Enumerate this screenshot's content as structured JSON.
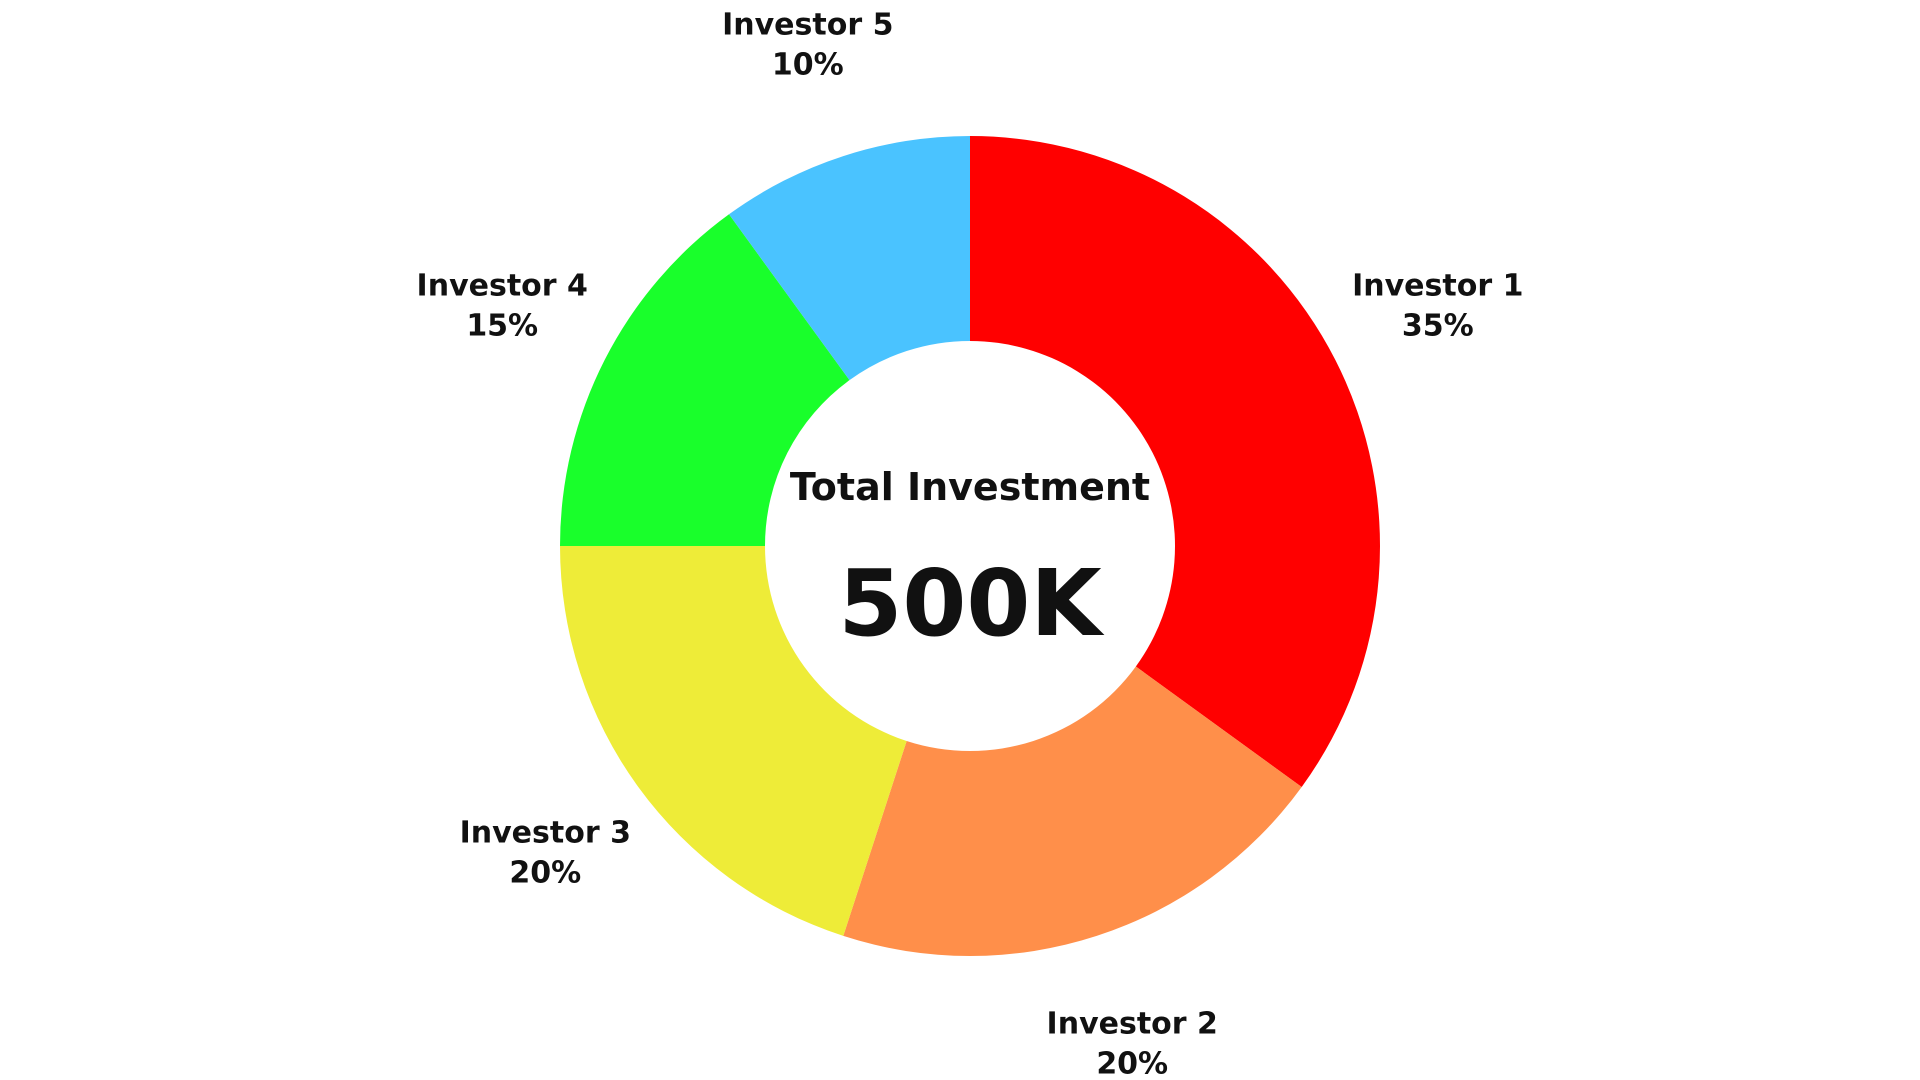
{
  "chart_data": {
    "type": "pie",
    "variant": "donut",
    "categories": [
      "Investor 1",
      "Investor 2",
      "Investor 3",
      "Investor 4",
      "Investor 5"
    ],
    "values": [
      35,
      20,
      20,
      15,
      10
    ],
    "value_labels": [
      "35%",
      "20%",
      "20%",
      "15%",
      "10%"
    ],
    "colors": [
      "#ff0000",
      "#ff8f4a",
      "#eeec38",
      "#19ff2b",
      "#4ac3ff"
    ],
    "start": "top",
    "direction": "clockwise",
    "center_title": "Total Investment",
    "center_value": "500K",
    "legend": "none"
  }
}
